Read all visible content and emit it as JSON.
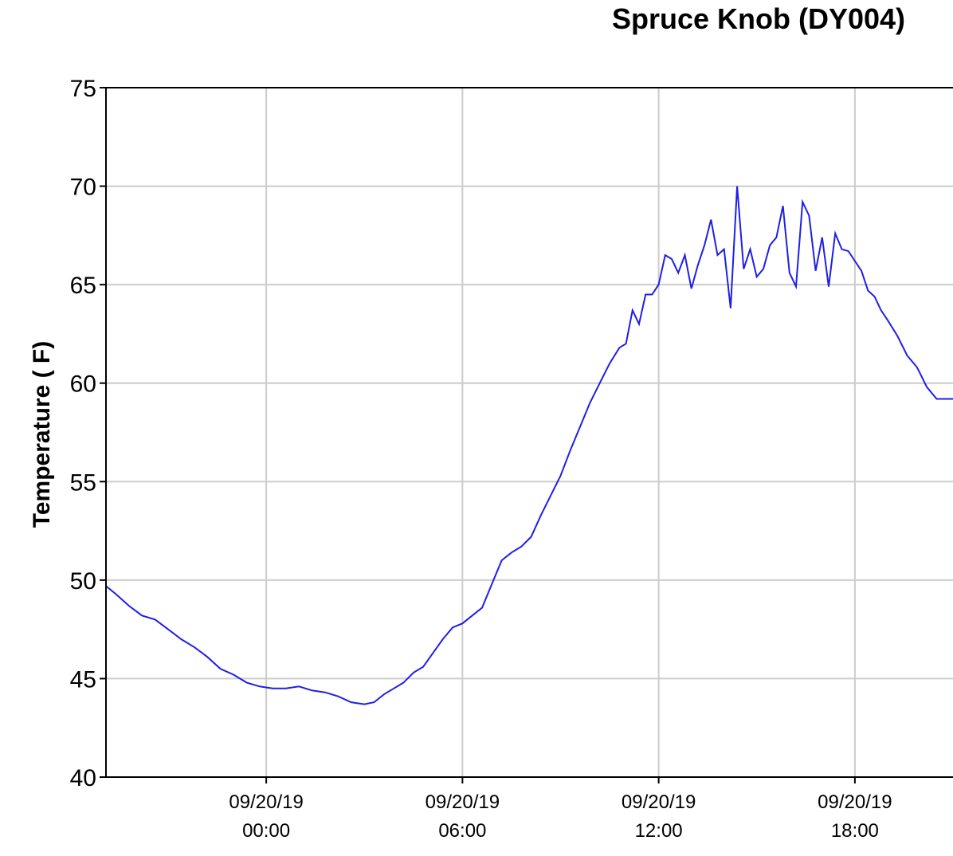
{
  "chart_data": {
    "type": "line",
    "title": "Spruce Knob (DY004)",
    "xlabel": "",
    "ylabel": "Temperature ( F)",
    "ylim": [
      40,
      75
    ],
    "yticks": [
      40,
      45,
      50,
      55,
      60,
      65,
      70,
      75
    ],
    "xlim": [
      -4.9,
      21.0
    ],
    "grid": true,
    "x_unit": "hours relative to 09/20/19 00:00",
    "xticks": [
      {
        "value": 0,
        "date": "09/20/19",
        "time": "00:00"
      },
      {
        "value": 6,
        "date": "09/20/19",
        "time": "06:00"
      },
      {
        "value": 12,
        "date": "09/20/19",
        "time": "12:00"
      },
      {
        "value": 18,
        "date": "09/20/19",
        "time": "18:00"
      }
    ],
    "series": [
      {
        "color": "#1f1fe6",
        "x": [
          -4.9,
          -4.6,
          -4.2,
          -3.8,
          -3.4,
          -3.0,
          -2.6,
          -2.2,
          -1.8,
          -1.4,
          -1.0,
          -0.6,
          -0.2,
          0.2,
          0.6,
          1.0,
          1.4,
          1.8,
          2.2,
          2.6,
          3.0,
          3.3,
          3.6,
          3.9,
          4.2,
          4.5,
          4.8,
          5.1,
          5.4,
          5.7,
          6.0,
          6.3,
          6.6,
          6.9,
          7.2,
          7.5,
          7.8,
          8.1,
          8.4,
          8.7,
          9.0,
          9.3,
          9.6,
          9.9,
          10.2,
          10.5,
          10.8,
          11.0,
          11.2,
          11.4,
          11.6,
          11.8,
          12.0,
          12.2,
          12.4,
          12.6,
          12.8,
          13.0,
          13.2,
          13.4,
          13.6,
          13.8,
          14.0,
          14.2,
          14.4,
          14.6,
          14.8,
          15.0,
          15.2,
          15.4,
          15.6,
          15.8,
          16.0,
          16.2,
          16.4,
          16.6,
          16.8,
          17.0,
          17.2,
          17.4,
          17.6,
          17.8,
          18.0,
          18.2,
          18.4,
          18.6,
          18.8,
          19.0,
          19.3,
          19.6,
          19.9,
          20.2,
          20.5,
          21.0
        ],
        "y": [
          49.7,
          49.3,
          48.7,
          48.2,
          48.0,
          47.5,
          47.0,
          46.6,
          46.1,
          45.5,
          45.2,
          44.8,
          44.6,
          44.5,
          44.5,
          44.6,
          44.4,
          44.3,
          44.1,
          43.8,
          43.7,
          43.8,
          44.2,
          44.5,
          44.8,
          45.3,
          45.6,
          46.3,
          47.0,
          47.6,
          47.8,
          48.2,
          48.6,
          49.8,
          51.0,
          51.4,
          51.7,
          52.2,
          53.3,
          54.3,
          55.3,
          56.6,
          57.8,
          59.0,
          60.0,
          61.0,
          61.8,
          62.0,
          63.7,
          63.0,
          64.5,
          64.5,
          65.0,
          66.5,
          66.3,
          65.6,
          66.5,
          64.8,
          66.0,
          67.0,
          68.3,
          66.5,
          66.8,
          63.8,
          70.0,
          65.8,
          66.8,
          65.4,
          65.8,
          67.0,
          67.4,
          69.0,
          65.6,
          64.9,
          69.2,
          68.5,
          65.7,
          67.4,
          64.9,
          67.6,
          66.8,
          66.7,
          66.2,
          65.7,
          64.7,
          64.4,
          63.7,
          63.2,
          62.4,
          61.4,
          60.8,
          59.8,
          59.2,
          59.2
        ]
      }
    ]
  }
}
